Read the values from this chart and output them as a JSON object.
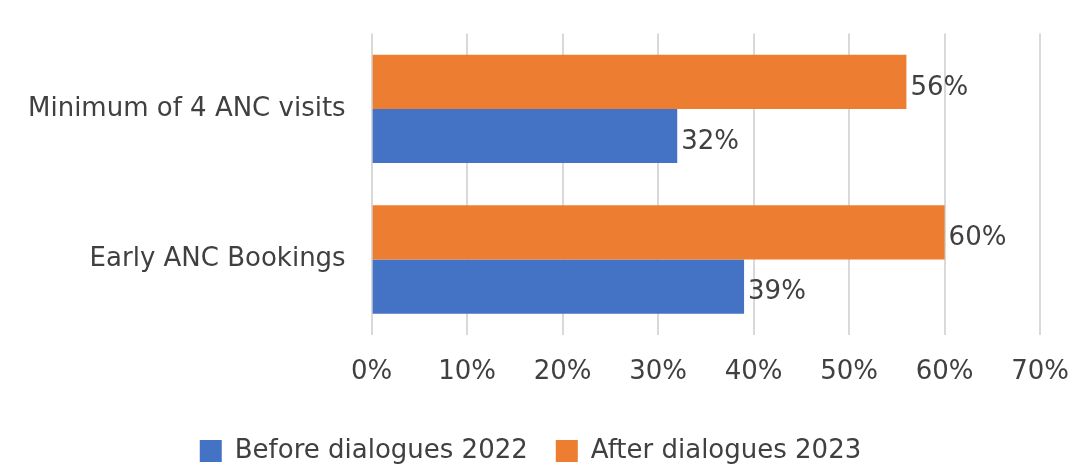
{
  "chart_data": {
    "type": "bar",
    "orientation": "horizontal",
    "categories": [
      "Minimum of 4 ANC visits",
      "Early ANC Bookings"
    ],
    "series": [
      {
        "name": "Before dialogues 2022",
        "color": "#4472c4",
        "values": [
          32,
          39
        ],
        "value_labels": [
          "32%",
          "39%"
        ]
      },
      {
        "name": "After dialogues 2023",
        "color": "#ed7d31",
        "values": [
          56,
          60
        ],
        "value_labels": [
          "56%",
          "60%"
        ]
      }
    ],
    "xlim": [
      0,
      70
    ],
    "xticks": [
      {
        "value": 0,
        "label": "0%"
      },
      {
        "value": 10,
        "label": "10%"
      },
      {
        "value": 20,
        "label": "20%"
      },
      {
        "value": 30,
        "label": "30%"
      },
      {
        "value": 40,
        "label": "40%"
      },
      {
        "value": 50,
        "label": "50%"
      },
      {
        "value": 60,
        "label": "60%"
      },
      {
        "value": 70,
        "label": "70%"
      }
    ],
    "grid": "x",
    "legend": "bottom"
  }
}
